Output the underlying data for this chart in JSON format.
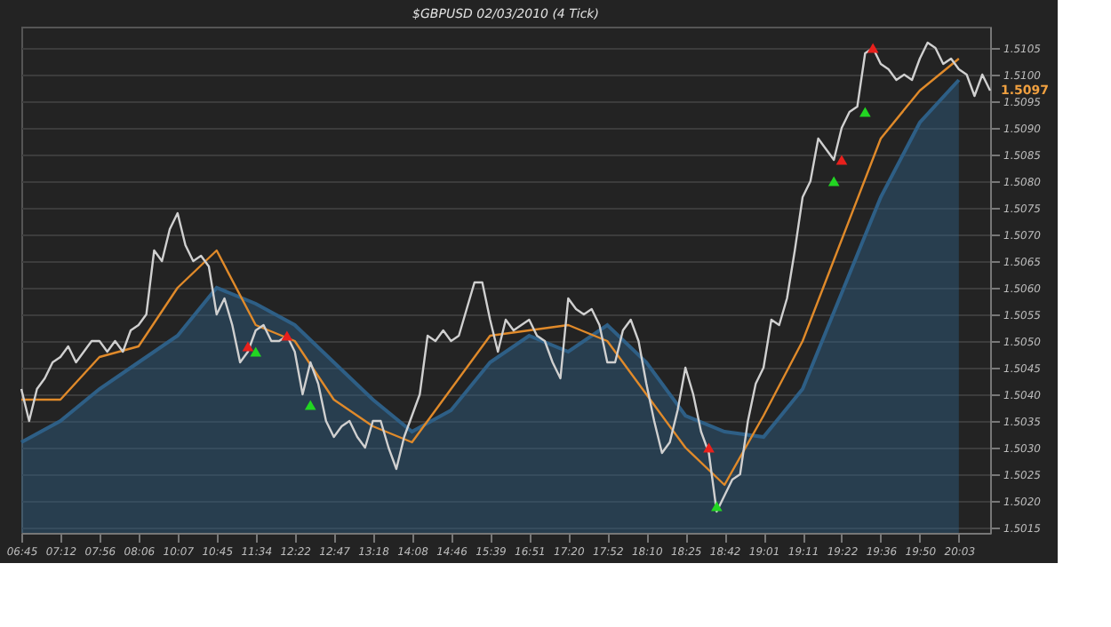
{
  "chart_data": {
    "type": "line",
    "title": "$GBPUSD 02/03/2010 (4 Tick)",
    "categories": [
      "06:45",
      null,
      null,
      null,
      null,
      "07:12",
      null,
      null,
      null,
      null,
      "07:56",
      null,
      null,
      null,
      null,
      "08:06",
      null,
      null,
      null,
      null,
      "10:07",
      null,
      null,
      null,
      null,
      "10:45",
      null,
      null,
      null,
      null,
      "11:34",
      null,
      null,
      null,
      null,
      "12:22",
      null,
      null,
      null,
      null,
      "12:47",
      null,
      null,
      null,
      null,
      "13:18",
      null,
      null,
      null,
      null,
      "14:08",
      null,
      null,
      null,
      null,
      "14:46",
      null,
      null,
      null,
      null,
      "15:39",
      null,
      null,
      null,
      null,
      "16:51",
      null,
      null,
      null,
      null,
      "17:20",
      null,
      null,
      null,
      null,
      "17:52",
      null,
      null,
      null,
      null,
      "18:10",
      null,
      null,
      null,
      null,
      "18:25",
      null,
      null,
      null,
      null,
      "18:42",
      null,
      null,
      null,
      null,
      "19:01",
      null,
      null,
      null,
      null,
      "19:11",
      null,
      null,
      null,
      null,
      "19:22",
      null,
      null,
      null,
      null,
      "19:36",
      null,
      null,
      null,
      null,
      "19:50",
      null,
      null,
      null,
      null,
      "20:03",
      null,
      null,
      null,
      null
    ],
    "series": [
      {
        "type": "area",
        "color": "#2e5f86",
        "values": [
          1.5031,
          null,
          null,
          null,
          null,
          1.5035,
          null,
          null,
          null,
          null,
          1.5041,
          null,
          null,
          null,
          null,
          1.5046,
          null,
          null,
          null,
          null,
          1.5051,
          null,
          null,
          null,
          null,
          1.506,
          null,
          null,
          null,
          null,
          1.5057,
          null,
          null,
          null,
          null,
          1.5053,
          null,
          null,
          null,
          null,
          1.5046,
          null,
          null,
          null,
          null,
          1.5039,
          null,
          null,
          null,
          null,
          1.5033,
          null,
          null,
          null,
          null,
          1.5037,
          null,
          null,
          null,
          null,
          1.5046,
          null,
          null,
          null,
          null,
          1.5051,
          null,
          null,
          null,
          null,
          1.5048,
          null,
          null,
          null,
          null,
          1.5053,
          null,
          null,
          null,
          null,
          1.5046,
          null,
          null,
          null,
          null,
          1.5036,
          null,
          null,
          null,
          null,
          1.5033,
          null,
          null,
          null,
          null,
          1.5032,
          null,
          null,
          null,
          null,
          1.5041,
          null,
          null,
          null,
          null,
          1.5059,
          null,
          null,
          null,
          null,
          1.5077,
          null,
          null,
          null,
          null,
          1.5091,
          null,
          null,
          null,
          null,
          1.5099,
          null,
          null,
          null,
          null
        ]
      },
      {
        "type": "line",
        "color": "#e08a2a",
        "values": [
          1.5039,
          null,
          null,
          null,
          null,
          1.5039,
          null,
          null,
          null,
          null,
          1.5047,
          null,
          null,
          null,
          null,
          1.5049,
          null,
          null,
          null,
          null,
          1.506,
          null,
          null,
          null,
          null,
          1.5067,
          null,
          null,
          null,
          null,
          1.5053,
          null,
          null,
          null,
          null,
          1.505,
          null,
          null,
          null,
          null,
          1.5039,
          null,
          null,
          null,
          null,
          1.5034,
          null,
          null,
          null,
          null,
          1.5031,
          null,
          null,
          null,
          null,
          1.5041,
          null,
          null,
          null,
          null,
          1.5051,
          null,
          null,
          null,
          null,
          1.5052,
          null,
          null,
          null,
          null,
          1.5053,
          null,
          null,
          null,
          null,
          1.505,
          null,
          null,
          null,
          null,
          1.504,
          null,
          null,
          null,
          null,
          1.503,
          null,
          null,
          null,
          null,
          1.5023,
          null,
          null,
          null,
          null,
          1.5036,
          null,
          null,
          null,
          null,
          1.505,
          null,
          null,
          null,
          null,
          1.5069,
          null,
          null,
          null,
          null,
          1.5088,
          null,
          null,
          null,
          null,
          1.5097,
          null,
          null,
          null,
          null,
          1.5103,
          null,
          null,
          null,
          null
        ]
      },
      {
        "color": "#d0d0d0",
        "values": [
          1.5041,
          1.5035,
          1.5041,
          1.5043,
          1.5046,
          1.5047,
          1.5049,
          1.5046,
          1.5048,
          1.505,
          1.505,
          1.5048,
          1.505,
          1.5048,
          1.5052,
          1.5053,
          1.5055,
          1.5067,
          1.5065,
          1.5071,
          1.5074,
          1.5068,
          1.5065,
          1.5066,
          1.5064,
          1.5055,
          1.5058,
          1.5053,
          1.5046,
          1.5048,
          1.5052,
          1.5053,
          1.505,
          1.505,
          1.5051,
          1.5048,
          1.504,
          1.5046,
          1.5042,
          1.5035,
          1.5032,
          1.5034,
          1.5035,
          1.5032,
          1.503,
          1.5035,
          1.5035,
          1.503,
          1.5026,
          1.5032,
          1.5036,
          1.504,
          1.5051,
          1.505,
          1.5052,
          1.505,
          1.5051,
          1.5056,
          1.5061,
          1.5061,
          1.5054,
          1.5048,
          1.5054,
          1.5052,
          1.5053,
          1.5054,
          1.5051,
          1.505,
          1.5046,
          1.5043,
          1.5058,
          1.5056,
          1.5055,
          1.5056,
          1.5053,
          1.5046,
          1.5046,
          1.5052,
          1.5054,
          1.505,
          1.5042,
          1.5035,
          1.5029,
          1.5031,
          1.5037,
          1.5045,
          1.504,
          1.5033,
          1.5029,
          1.5018,
          1.5021,
          1.5024,
          1.5025,
          1.5035,
          1.5042,
          1.5045,
          1.5054,
          1.5053,
          1.5058,
          1.5067,
          1.5077,
          1.508,
          1.5088,
          1.5086,
          1.5084,
          1.509,
          1.5093,
          1.5094,
          1.5104,
          1.5105,
          1.5102,
          1.5101,
          1.5099,
          1.51,
          1.5099,
          1.5103,
          1.5106,
          1.5105,
          1.5102,
          1.5103,
          1.5101,
          1.51,
          1.5096,
          1.51,
          1.5097
        ]
      },
      {
        "type": "scatter",
        "color": "#e8201c",
        "marker": "triangle",
        "values": [
          null,
          null,
          null,
          null,
          null,
          null,
          null,
          null,
          null,
          null,
          null,
          null,
          null,
          null,
          null,
          null,
          null,
          null,
          null,
          null,
          null,
          null,
          null,
          null,
          null,
          null,
          null,
          null,
          null,
          1.5049,
          null,
          null,
          null,
          null,
          1.5051,
          null,
          null,
          null,
          null,
          null,
          null,
          null,
          null,
          null,
          null,
          null,
          null,
          null,
          null,
          null,
          null,
          null,
          null,
          null,
          null,
          null,
          null,
          null,
          null,
          null,
          null,
          null,
          null,
          null,
          null,
          null,
          null,
          null,
          null,
          null,
          null,
          null,
          null,
          null,
          null,
          null,
          null,
          null,
          null,
          null,
          null,
          null,
          null,
          null,
          null,
          null,
          null,
          null,
          1.503,
          null,
          null,
          null,
          null,
          null,
          null,
          null,
          null,
          null,
          null,
          null,
          null,
          null,
          null,
          null,
          null,
          1.5084,
          null,
          null,
          null,
          1.5105,
          null,
          null,
          null,
          null,
          null,
          null,
          null,
          null,
          null,
          null,
          null,
          null,
          null,
          null,
          null
        ]
      },
      {
        "type": "scatter",
        "color": "#22d622",
        "marker": "triangle",
        "values": [
          null,
          null,
          null,
          null,
          null,
          null,
          null,
          null,
          null,
          null,
          null,
          null,
          null,
          null,
          null,
          null,
          null,
          null,
          null,
          null,
          null,
          null,
          null,
          null,
          null,
          null,
          null,
          null,
          null,
          null,
          1.5048,
          null,
          null,
          null,
          null,
          null,
          null,
          1.5038,
          null,
          null,
          null,
          null,
          null,
          null,
          null,
          null,
          null,
          null,
          null,
          null,
          null,
          null,
          null,
          null,
          null,
          null,
          null,
          null,
          null,
          null,
          null,
          null,
          null,
          null,
          null,
          null,
          null,
          null,
          null,
          null,
          null,
          null,
          null,
          null,
          null,
          null,
          null,
          null,
          null,
          null,
          null,
          null,
          null,
          null,
          null,
          null,
          null,
          null,
          null,
          1.5019,
          null,
          null,
          null,
          null,
          null,
          null,
          null,
          null,
          null,
          null,
          null,
          null,
          null,
          null,
          1.508,
          null,
          null,
          null,
          1.5093,
          null,
          null,
          null,
          null,
          null,
          null,
          null,
          null,
          null,
          null,
          null,
          null,
          null,
          null,
          null,
          null
        ]
      }
    ],
    "ylim": [
      1.5014,
      1.5109
    ],
    "yticks": [
      1.5015,
      {
        "value": 1.502,
        "label": "1.5020"
      },
      1.5025,
      {
        "value": 1.503,
        "label": "1.5030"
      },
      1.5035,
      {
        "value": 1.504,
        "label": "1.5040"
      },
      1.5045,
      {
        "value": 1.505,
        "label": "1.5050"
      },
      1.5055,
      {
        "value": 1.506,
        "label": "1.5060"
      },
      1.5065,
      {
        "value": 1.507,
        "label": "1.5070"
      },
      1.5075,
      {
        "value": 1.508,
        "label": "1.5080"
      },
      1.5085,
      {
        "value": 1.509,
        "label": "1.5090"
      },
      1.5095,
      {
        "value": 1.51,
        "label": "1.5100"
      },
      1.5105
    ],
    "grid": "y",
    "annotations": [
      "1.5097"
    ]
  }
}
